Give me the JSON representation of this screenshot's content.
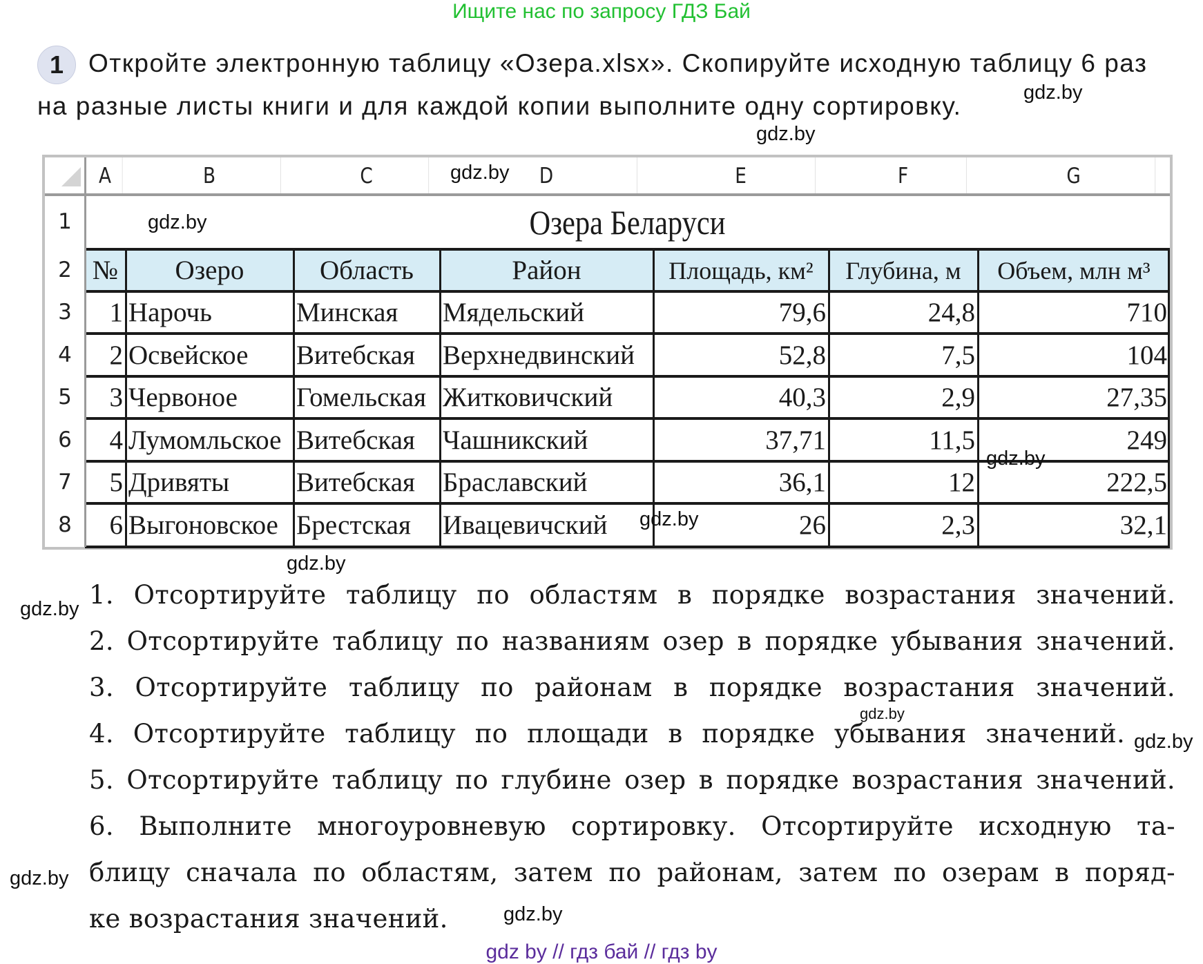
{
  "top_note": "Ищите нас по запросу ГДЗ Бай",
  "exercise": {
    "number": "1",
    "intro_line1": "Откройте электронную таблицу «Озера.xlsx». Скопируйте исходную таблицу 6 раз",
    "intro_line2": "на разные листы книги и для каждой копии выполните одну сортировку."
  },
  "spreadsheet": {
    "column_letters": [
      "A",
      "B",
      "C",
      "D",
      "E",
      "F",
      "G"
    ],
    "row_numbers": [
      "1",
      "2",
      "3",
      "4",
      "5",
      "6",
      "7",
      "8"
    ],
    "title": "Озера Беларуси",
    "headers": [
      "№",
      "Озеро",
      "Область",
      "Район",
      "Площадь, км²",
      "Глубина, м",
      "Объем, млн м³"
    ],
    "rows": [
      [
        "1",
        "Нарочь",
        "Минская",
        "Мядельский",
        "79,6",
        "24,8",
        "710"
      ],
      [
        "2",
        "Освейское",
        "Витебская",
        "Верхнедвинский",
        "52,8",
        "7,5",
        "104"
      ],
      [
        "3",
        "Червоное",
        "Гомельская",
        "Житковичский",
        "40,3",
        "2,9",
        "27,35"
      ],
      [
        "4",
        "Лумомльское",
        "Витебская",
        "Чашникский",
        "37,71",
        "11,5",
        "249"
      ],
      [
        "5",
        "Дривяты",
        "Витебская",
        "Браславский",
        "36,1",
        "12",
        "222,5"
      ],
      [
        "6",
        "Выгоновское",
        "Брестская",
        "Ивацевичский",
        "26",
        "2,3",
        "32,1"
      ]
    ],
    "header_fill": "#d6ecf5"
  },
  "tasks": [
    "1. Отсортируйте таблицу по областям в порядке возрастания значений.",
    "2. Отсортируйте таблицу по названиям озер в порядке убывания значений.",
    "3. Отсортируйте таблицу по районам в порядке возрастания значений.",
    "4. Отсортируйте таблицу по площади в порядке убывания значений.",
    "5. Отсортируйте таблицу по глубине озер в порядке возрастания значений.",
    "6. Выполните многоуровневую сортировку. Отсортируйте исходную та-",
    "блицу сначала по областям, затем по районам, затем по озерам в поряд-",
    "ке возрастания значений."
  ],
  "watermarks": [
    "gdz.by",
    "gdz.by",
    "gdz.by",
    "gdz.by",
    "gdz.by",
    "gdz.by",
    "gdz.by",
    "gdz.by",
    "gdz.by",
    "gdz.by",
    "gdz.by",
    "gdz.by"
  ],
  "footer": "gdz by  //  гдз бай  //  гдз by"
}
